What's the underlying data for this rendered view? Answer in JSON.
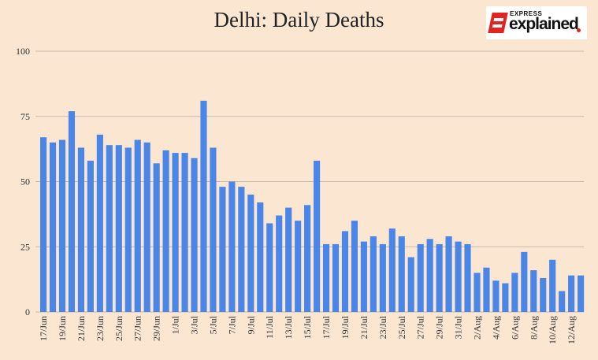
{
  "chart_data": {
    "type": "bar",
    "title": "Delhi: Daily Deaths",
    "xlabel": "",
    "ylabel": "",
    "ylim": [
      0,
      100
    ],
    "yticks": [
      0,
      25,
      50,
      75,
      100
    ],
    "grid": true,
    "bar_color": "#4a86e8",
    "categories": [
      "17/Jun",
      "18/Jun",
      "19/Jun",
      "20/Jun",
      "21/Jun",
      "22/Jun",
      "23/Jun",
      "24/Jun",
      "25/Jun",
      "26/Jun",
      "27/Jun",
      "28/Jun",
      "29/Jun",
      "30/Jun",
      "1/Jul",
      "2/Jul",
      "3/Jul",
      "4/Jul",
      "5/Jul",
      "6/Jul",
      "7/Jul",
      "8/Jul",
      "9/Jul",
      "10/Jul",
      "11/Jul",
      "12/Jul",
      "13/Jul",
      "14/Jul",
      "15/Jul",
      "16/Jul",
      "17/Jul",
      "18/Jul",
      "19/Jul",
      "20/Jul",
      "21/Jul",
      "22/Jul",
      "23/Jul",
      "24/Jul",
      "25/Jul",
      "26/Jul",
      "27/Jul",
      "28/Jul",
      "29/Jul",
      "30/Jul",
      "31/Jul",
      "1/Aug",
      "2/Aug",
      "3/Aug",
      "4/Aug",
      "5/Aug",
      "6/Aug",
      "7/Aug",
      "8/Aug",
      "9/Aug",
      "10/Aug",
      "11/Aug",
      "12/Aug",
      "13/Aug"
    ],
    "values": [
      67,
      65,
      66,
      77,
      63,
      58,
      68,
      64,
      64,
      63,
      66,
      65,
      57,
      62,
      61,
      61,
      59,
      81,
      63,
      48,
      50,
      48,
      45,
      42,
      34,
      37,
      40,
      35,
      41,
      58,
      26,
      26,
      31,
      35,
      27,
      29,
      26,
      32,
      29,
      21,
      26,
      28,
      26,
      29,
      27,
      26,
      15,
      17,
      12,
      11,
      15,
      23,
      16,
      13,
      20,
      8,
      14,
      14
    ],
    "labeled_categories": [
      "17/Jun",
      "19/Jun",
      "21/Jun",
      "23/Jun",
      "25/Jun",
      "27/Jun",
      "29/Jun",
      "1/Jul",
      "3/Jul",
      "5/Jul",
      "7/Jul",
      "9/Jul",
      "11/Jul",
      "13/Jul",
      "15/Jul",
      "17/Jul",
      "19/Jul",
      "21/Jul",
      "23/Jul",
      "25/Jul",
      "27/Jul",
      "29/Jul",
      "31/Jul",
      "2/Aug",
      "4/Aug",
      "6/Aug",
      "8/Aug",
      "10/Aug",
      "12/Aug"
    ]
  },
  "logo": {
    "top_text": "EXPRESS",
    "bottom_text": "explained",
    "accent_color": "#e3231f"
  }
}
